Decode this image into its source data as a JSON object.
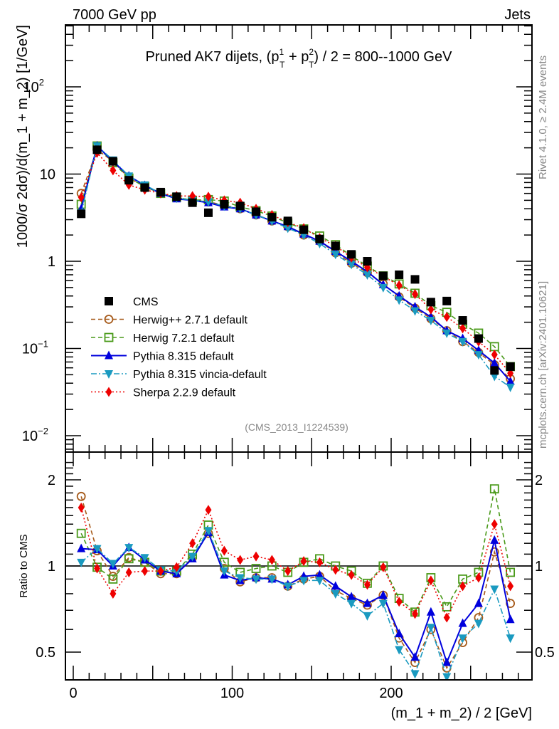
{
  "header": {
    "left_label": "7000 GeV pp",
    "right_label": "Jets"
  },
  "side_labels": {
    "rivet": "Rivet 4.1.0, ≥ 2.4M events",
    "mcplots": "mcplots.cern.ch [arXiv:2401.10621]"
  },
  "chart_data": [
    {
      "type": "scatter",
      "panel": "main",
      "title": "Pruned AK7 dijets, (p_T^1 + p_T^2) / 2 = 800--1000 GeV",
      "title_parts": {
        "pre": "Pruned AK7 dijets, (p",
        "sup1": "1",
        "sub1": "T",
        "mid": " + p",
        "sup2": "2",
        "sub2": "T",
        "post": ") / 2 = 800--1000 GeV"
      },
      "analysis_label": "(CMS_2013_I1224539)",
      "ylabel": "1000/σ  2dσ)/d(m_1 + m_2) [1/GeV]",
      "yscale": "log",
      "ylim": [
        0.007,
        600
      ],
      "yticks": [
        {
          "value": 0.01,
          "label": "10",
          "exp": "−2"
        },
        {
          "value": 0.1,
          "label": "10",
          "exp": "−1"
        },
        {
          "value": 1,
          "label": "1",
          "exp": ""
        },
        {
          "value": 10,
          "label": "10",
          "exp": ""
        },
        {
          "value": 100,
          "label": "10",
          "exp": "2"
        }
      ],
      "xlim": [
        -5,
        285
      ],
      "legend_position": "center-left",
      "x": [
        5,
        15,
        25,
        35,
        45,
        55,
        65,
        75,
        85,
        95,
        105,
        115,
        125,
        135,
        145,
        155,
        165,
        175,
        185,
        195,
        205,
        215,
        225,
        235,
        245,
        255,
        265,
        275
      ],
      "series": [
        {
          "name": "CMS",
          "color": "#000000",
          "marker": "square-filled",
          "line": "none",
          "values": [
            3.5,
            19,
            14,
            8.5,
            7.0,
            6.2,
            5.5,
            4.7,
            3.6,
            4.5,
            4.3,
            3.7,
            3.2,
            2.9,
            2.3,
            1.8,
            1.5,
            1.2,
            1.0,
            0.68,
            0.7,
            0.62,
            0.34,
            0.35,
            0.21,
            0.13,
            0.056,
            0.062
          ]
        },
        {
          "name": "Herwig++ 2.7.1 default",
          "color": "#a65a1a",
          "marker": "circle-open",
          "line": "dashed",
          "values": [
            6.0,
            19,
            14,
            9.0,
            7.2,
            6.0,
            5.4,
            5.0,
            4.8,
            4.4,
            4.0,
            3.4,
            2.9,
            2.5,
            2.0,
            1.7,
            1.25,
            0.95,
            0.74,
            0.55,
            0.39,
            0.29,
            0.22,
            0.16,
            0.12,
            0.09,
            0.065,
            0.045
          ]
        },
        {
          "name": "Herwig 7.2.1 default",
          "color": "#4a9a1a",
          "marker": "square-open",
          "line": "dashed",
          "values": [
            4.5,
            21,
            13.5,
            9.0,
            7.2,
            6.0,
            5.4,
            5.0,
            5.1,
            4.9,
            4.2,
            3.8,
            3.3,
            2.75,
            2.35,
            1.95,
            1.55,
            1.15,
            0.88,
            0.68,
            0.55,
            0.43,
            0.31,
            0.26,
            0.19,
            0.15,
            0.105,
            0.062
          ]
        },
        {
          "name": "Pythia 8.315 default",
          "color": "#0000dd",
          "marker": "triangle-up-filled",
          "line": "solid",
          "values": [
            4.0,
            21,
            14,
            9.5,
            7.4,
            6.0,
            5.2,
            5.0,
            4.7,
            4.2,
            4.0,
            3.4,
            2.9,
            2.5,
            2.05,
            1.7,
            1.3,
            1.0,
            0.76,
            0.54,
            0.4,
            0.3,
            0.23,
            0.16,
            0.13,
            0.095,
            0.068,
            0.042
          ]
        },
        {
          "name": "Pythia 8.315 vincia-default",
          "color": "#1a9ac0",
          "marker": "triangle-down-filled",
          "line": "dashdot",
          "values": [
            3.6,
            21,
            14.5,
            9.5,
            7.5,
            6.0,
            5.3,
            5.0,
            4.8,
            4.3,
            4.0,
            3.4,
            2.9,
            2.4,
            2.0,
            1.6,
            1.2,
            0.92,
            0.7,
            0.5,
            0.36,
            0.27,
            0.21,
            0.15,
            0.12,
            0.085,
            0.048,
            0.036
          ]
        },
        {
          "name": "Sherpa 2.2.9 default",
          "color": "#ee0000",
          "marker": "diamond-filled",
          "line": "dotted",
          "values": [
            5.4,
            17.5,
            11,
            7.5,
            6.6,
            6.0,
            5.6,
            5.6,
            5.5,
            5.0,
            4.7,
            4.0,
            3.4,
            2.8,
            2.4,
            1.85,
            1.5,
            1.1,
            0.85,
            0.67,
            0.53,
            0.42,
            0.28,
            0.23,
            0.17,
            0.12,
            0.085,
            0.052
          ]
        }
      ]
    },
    {
      "type": "scatter",
      "panel": "ratio",
      "ylabel": "Ratio to CMS",
      "xlabel": "(m_1 + m_2) / 2 [GeV]",
      "yscale": "log",
      "ylim": [
        0.42,
        2.35
      ],
      "yticks": [
        {
          "value": 0.5,
          "label": "0.5"
        },
        {
          "value": 1,
          "label": "1"
        },
        {
          "value": 2,
          "label": "2"
        }
      ],
      "xticks": [
        {
          "value": 0,
          "label": "0"
        },
        {
          "value": 100,
          "label": "100"
        },
        {
          "value": 200,
          "label": "200"
        }
      ],
      "xlim": [
        -5,
        285
      ],
      "reference_line": 1,
      "x": [
        5,
        15,
        25,
        35,
        45,
        55,
        65,
        75,
        85,
        95,
        105,
        115,
        125,
        135,
        145,
        155,
        165,
        175,
        185,
        195,
        205,
        215,
        225,
        235,
        245,
        255,
        265,
        275
      ],
      "series": [
        {
          "name": "Herwig++ 2.7.1 default",
          "color": "#a65a1a",
          "marker": "circle-open",
          "line": "dashed",
          "values": [
            1.75,
            1.13,
            0.92,
            1.07,
            1.03,
            0.94,
            0.94,
            1.07,
            1.3,
            0.98,
            0.88,
            0.91,
            0.91,
            0.85,
            0.9,
            0.92,
            0.82,
            0.77,
            0.73,
            0.79,
            0.56,
            0.46,
            0.6,
            0.44,
            0.54,
            0.66,
            1.12,
            0.74
          ]
        },
        {
          "name": "Herwig 7.2.1 default",
          "color": "#4a9a1a",
          "marker": "square-open",
          "line": "dashed",
          "values": [
            1.3,
            0.99,
            0.9,
            1.06,
            1.03,
            0.96,
            0.96,
            1.1,
            1.39,
            1.03,
            0.95,
            0.98,
            1.0,
            0.95,
            1.03,
            1.06,
            1.0,
            0.96,
            0.87,
            1.0,
            0.77,
            0.69,
            0.91,
            0.72,
            0.9,
            0.95,
            1.86,
            0.95
          ]
        },
        {
          "name": "Pythia 8.315 default",
          "color": "#0000dd",
          "marker": "triangle-up-filled",
          "line": "solid",
          "values": [
            1.15,
            1.14,
            1.0,
            1.16,
            1.05,
            0.96,
            0.94,
            1.06,
            1.31,
            0.93,
            0.89,
            0.91,
            0.9,
            0.86,
            0.92,
            0.93,
            0.85,
            0.78,
            0.74,
            0.79,
            0.58,
            0.48,
            0.69,
            0.46,
            0.63,
            0.74,
            1.23,
            0.65
          ]
        },
        {
          "name": "Pythia 8.315 vincia-default",
          "color": "#1a9ac0",
          "marker": "triangle-down-filled",
          "line": "dashdot",
          "values": [
            1.03,
            1.15,
            1.02,
            1.16,
            1.07,
            0.97,
            0.96,
            1.08,
            1.33,
            0.96,
            0.91,
            0.9,
            0.9,
            0.85,
            0.89,
            0.89,
            0.8,
            0.74,
            0.67,
            0.74,
            0.51,
            0.42,
            0.61,
            0.41,
            0.56,
            0.63,
            0.83,
            0.56
          ]
        },
        {
          "name": "Sherpa 2.2.9 default",
          "color": "#ee0000",
          "marker": "diamond-filled",
          "line": "dotted",
          "values": [
            1.6,
            0.98,
            0.8,
            0.95,
            0.96,
            0.96,
            0.99,
            1.2,
            1.57,
            1.13,
            1.05,
            1.08,
            1.05,
            0.96,
            1.04,
            1.03,
            0.97,
            0.93,
            0.86,
            0.99,
            0.75,
            0.68,
            0.89,
            0.66,
            0.85,
            0.91,
            1.4,
            0.85
          ]
        }
      ]
    }
  ]
}
